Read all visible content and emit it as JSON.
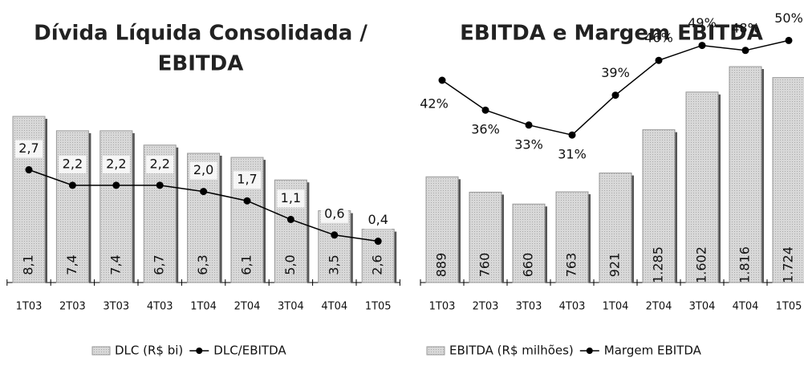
{
  "chart_data": [
    {
      "type": "bar-line",
      "title": [
        "Dívida Líquida Consolidada /",
        "EBITDA"
      ],
      "categories": [
        "1T03",
        "2T03",
        "3T03",
        "4T03",
        "1T04",
        "2T04",
        "3T04",
        "4T04",
        "1T05"
      ],
      "series": [
        {
          "name": "DLC (R$ bi)",
          "color": "#cfcfcf",
          "values": [
            8.1,
            7.4,
            7.4,
            6.7,
            6.3,
            6.1,
            5.0,
            3.5,
            2.6
          ],
          "value_labels": [
            "8,1",
            "7,4",
            "7,4",
            "6,7",
            "6,3",
            "6,1",
            "5,0",
            "3,5",
            "2,6"
          ]
        },
        {
          "name": "DLC/EBITDA",
          "color": "#000000",
          "axis": "y2",
          "values": [
            2.7,
            2.2,
            2.2,
            2.2,
            2.0,
            1.7,
            1.1,
            0.6,
            0.4
          ],
          "value_labels": [
            "2,7",
            "2,2",
            "2,2",
            "2,2",
            "2,0",
            "1,7",
            "1,1",
            "0,6",
            "0,4"
          ]
        }
      ]
    },
    {
      "type": "bar-line",
      "title": [
        "EBITDA e Margem EBITDA"
      ],
      "categories": [
        "1T03",
        "2T03",
        "3T03",
        "4T03",
        "1T04",
        "2T04",
        "3T04",
        "4T04",
        "1T05"
      ],
      "series": [
        {
          "name": "EBITDA (R$ milhões)",
          "color": "#cfcfcf",
          "values": [
            889,
            760,
            660,
            763,
            921,
            1285,
            1602,
            1816,
            1724
          ],
          "value_labels": [
            "889",
            "760",
            "660",
            "763",
            "921",
            "1.285",
            "1.602",
            "1.816",
            "1.724"
          ]
        },
        {
          "name": "Margem EBITDA",
          "color": "#000000",
          "axis": "y2",
          "values": [
            42,
            36,
            33,
            31,
            39,
            46,
            49,
            48,
            50
          ],
          "value_labels": [
            "42%",
            "36%",
            "33%",
            "31%",
            "39%",
            "46%",
            "49%",
            "48%",
            "50%"
          ]
        }
      ]
    }
  ]
}
